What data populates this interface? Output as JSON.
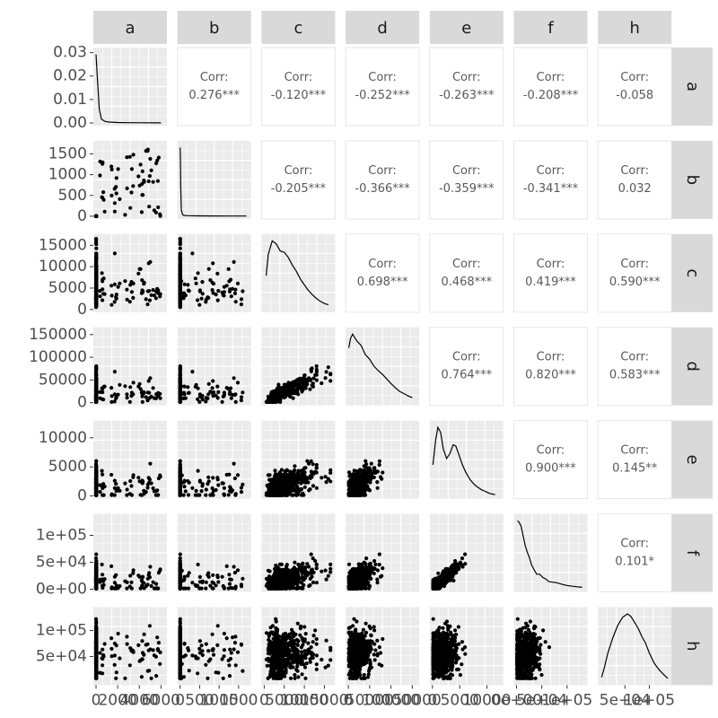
{
  "chart_data": {
    "type": "scatter-matrix",
    "variables": [
      "a",
      "b",
      "c",
      "d",
      "e",
      "f",
      "h"
    ],
    "upper_label": "Corr:",
    "correlations": [
      {
        "row": "a",
        "col": "b",
        "text": "0.276***"
      },
      {
        "row": "a",
        "col": "c",
        "text": "-0.120***"
      },
      {
        "row": "a",
        "col": "d",
        "text": "-0.252***"
      },
      {
        "row": "a",
        "col": "e",
        "text": "-0.263***"
      },
      {
        "row": "a",
        "col": "f",
        "text": "-0.208***"
      },
      {
        "row": "a",
        "col": "h",
        "text": "-0.058"
      },
      {
        "row": "b",
        "col": "c",
        "text": "-0.205***"
      },
      {
        "row": "b",
        "col": "d",
        "text": "-0.366***"
      },
      {
        "row": "b",
        "col": "e",
        "text": "-0.359***"
      },
      {
        "row": "b",
        "col": "f",
        "text": "-0.341***"
      },
      {
        "row": "b",
        "col": "h",
        "text": "0.032"
      },
      {
        "row": "c",
        "col": "d",
        "text": "0.698***"
      },
      {
        "row": "c",
        "col": "e",
        "text": "0.468***"
      },
      {
        "row": "c",
        "col": "f",
        "text": "0.419***"
      },
      {
        "row": "c",
        "col": "h",
        "text": "0.590***"
      },
      {
        "row": "d",
        "col": "e",
        "text": "0.764***"
      },
      {
        "row": "d",
        "col": "f",
        "text": "0.820***"
      },
      {
        "row": "d",
        "col": "h",
        "text": "0.583***"
      },
      {
        "row": "e",
        "col": "f",
        "text": "0.900***"
      },
      {
        "row": "e",
        "col": "h",
        "text": "0.145**"
      },
      {
        "row": "f",
        "col": "h",
        "text": "0.101*"
      }
    ],
    "y_axes": [
      {
        "var": "a",
        "ticks": [
          0,
          0.01,
          0.02,
          0.03
        ],
        "labels": [
          "0.00",
          "0.01",
          "0.02",
          "0.03"
        ],
        "ylim": [
          0,
          0.031
        ]
      },
      {
        "var": "b",
        "ticks": [
          0,
          500,
          1000,
          1500
        ],
        "labels": [
          "0",
          "500",
          "1000",
          "1500"
        ],
        "ylim": [
          0,
          1750
        ]
      },
      {
        "var": "c",
        "ticks": [
          0,
          5000,
          10000,
          15000
        ],
        "labels": [
          "0",
          "5000",
          "10000",
          "15000"
        ],
        "ylim": [
          0,
          17000
        ]
      },
      {
        "var": "d",
        "ticks": [
          0,
          50000,
          100000,
          150000
        ],
        "labels": [
          "0",
          "50000",
          "100000",
          "150000"
        ],
        "ylim": [
          0,
          160000
        ]
      },
      {
        "var": "e",
        "ticks": [
          0,
          5000,
          10000
        ],
        "labels": [
          "0",
          "5000",
          "10000"
        ],
        "ylim": [
          0,
          12500
        ]
      },
      {
        "var": "f",
        "ticks": [
          0,
          50000,
          100000
        ],
        "labels": [
          "0e+00",
          "5e+04",
          "1e+05"
        ],
        "ylim": [
          0,
          135000
        ]
      },
      {
        "var": "h",
        "ticks": [
          50000,
          100000
        ],
        "labels": [
          "5e+04",
          "1e+05"
        ],
        "ylim": [
          0,
          140000
        ]
      }
    ],
    "x_axes": [
      {
        "var": "a",
        "xlim": [
          0,
          6300
        ],
        "labels": [
          "0",
          "2000",
          "4000",
          "6000"
        ]
      },
      {
        "var": "b",
        "xlim": [
          0,
          1750
        ],
        "labels": [
          "0",
          "500",
          "1000",
          "1500"
        ]
      },
      {
        "var": "c",
        "xlim": [
          0,
          17000
        ],
        "labels": [
          "0",
          "5000",
          "10000",
          "15000"
        ]
      },
      {
        "var": "d",
        "xlim": [
          0,
          160000
        ],
        "labels": [
          "0",
          "50000",
          "100000",
          "150000"
        ]
      },
      {
        "var": "e",
        "xlim": [
          0,
          12500
        ],
        "labels": [
          "0",
          "5000",
          "10000"
        ]
      },
      {
        "var": "f",
        "xlim": [
          0,
          135000
        ],
        "labels": [
          "0e+00",
          "5e+04",
          "1e+05"
        ]
      },
      {
        "var": "h",
        "xlim": [
          0,
          140000
        ],
        "labels": [
          "5e+04",
          "1e+05"
        ]
      }
    ],
    "density_curves": {
      "a": {
        "x": [
          0,
          120,
          300,
          500,
          800,
          1200,
          2000,
          3000,
          4500,
          6000
        ],
        "y": [
          0.0295,
          0.02,
          0.006,
          0.0017,
          0.0007,
          0.0004,
          0.0002,
          0.00012,
          8e-05,
          5e-05
        ]
      },
      "b": {
        "x": [
          0,
          5,
          15,
          30,
          60,
          100,
          200,
          400,
          800,
          1200,
          1700
        ],
        "y": [
          1650,
          1550,
          700,
          160,
          40,
          20,
          12,
          8,
          6,
          5,
          4
        ]
      },
      "c": {
        "x": [
          500,
          1000,
          2000,
          3000,
          4000,
          5000,
          6000,
          7000,
          8000,
          9000,
          10000,
          11000,
          12000,
          13000,
          14000,
          15000,
          16000
        ],
        "y": [
          8000,
          13000,
          16200,
          15500,
          13800,
          13500,
          12300,
          10500,
          9000,
          7200,
          5800,
          4500,
          3500,
          2600,
          1900,
          1400,
          1100
        ]
      },
      "d": {
        "x": [
          1000,
          5000,
          10000,
          20000,
          30000,
          40000,
          50000,
          60000,
          70000,
          80000,
          90000,
          100000,
          110000,
          120000,
          130000,
          140000,
          150000
        ],
        "y": [
          120000,
          140000,
          150000,
          135000,
          125000,
          105000,
          95000,
          80000,
          70000,
          62000,
          52000,
          42000,
          33000,
          25000,
          20000,
          15000,
          11000
        ]
      },
      "e": {
        "x": [
          100,
          600,
          1000,
          1500,
          2000,
          2600,
          3200,
          3800,
          4300,
          4900,
          5500,
          6000,
          6500,
          7000,
          7500,
          8000,
          8500,
          9000,
          9500,
          10000,
          10500,
          11000,
          11500
        ],
        "y": [
          5000,
          9000,
          11000,
          10200,
          7500,
          6000,
          6800,
          8200,
          8000,
          6500,
          5000,
          4000,
          3200,
          2500,
          2000,
          1600,
          1300,
          1000,
          800,
          600,
          400,
          300,
          200
        ]
      },
      "f": {
        "x": [
          2000,
          5000,
          9000,
          13000,
          17000,
          21000,
          26000,
          30000,
          35000,
          40000,
          46000,
          52000,
          58000,
          64000,
          72000,
          80000,
          90000,
          100000,
          110000,
          120000,
          130000
        ],
        "y": [
          128000,
          125000,
          118000,
          100000,
          82000,
          70000,
          58000,
          45000,
          36000,
          28000,
          28000,
          22000,
          19000,
          14000,
          13000,
          12000,
          9000,
          7000,
          5500,
          4500,
          3500
        ]
      },
      "h": {
        "x": [
          2000,
          8000,
          15000,
          25000,
          35000,
          45000,
          55000,
          62000,
          70000,
          78000,
          85000,
          92000,
          100000,
          110000,
          120000,
          130000,
          138000
        ],
        "y": [
          10000,
          30000,
          58000,
          88000,
          112000,
          128000,
          135000,
          130000,
          118000,
          105000,
          90000,
          78000,
          58000,
          38000,
          25000,
          15000,
          8000
        ]
      }
    },
    "point_color": "#000000",
    "panel_background": "#ebebeb",
    "strip_background": "#d9d9d9",
    "grid": true
  }
}
